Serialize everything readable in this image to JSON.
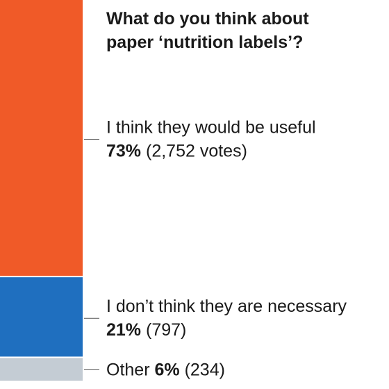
{
  "chart_data": {
    "type": "bar",
    "orientation": "stacked-vertical",
    "title_lines": [
      "What do you think about",
      "paper ‘nutrition labels’?"
    ],
    "categories": [
      "I think they would be useful",
      "I don’t think they are necessary",
      "Other"
    ],
    "values": [
      73,
      21,
      6
    ],
    "value_labels": [
      "73%",
      "21%",
      "6%"
    ],
    "votes_labels": [
      "(2,752 votes)",
      "(797)",
      "(234)"
    ],
    "colors": [
      "#f05a28",
      "#1f6fbf",
      "#c4ccd4"
    ]
  }
}
